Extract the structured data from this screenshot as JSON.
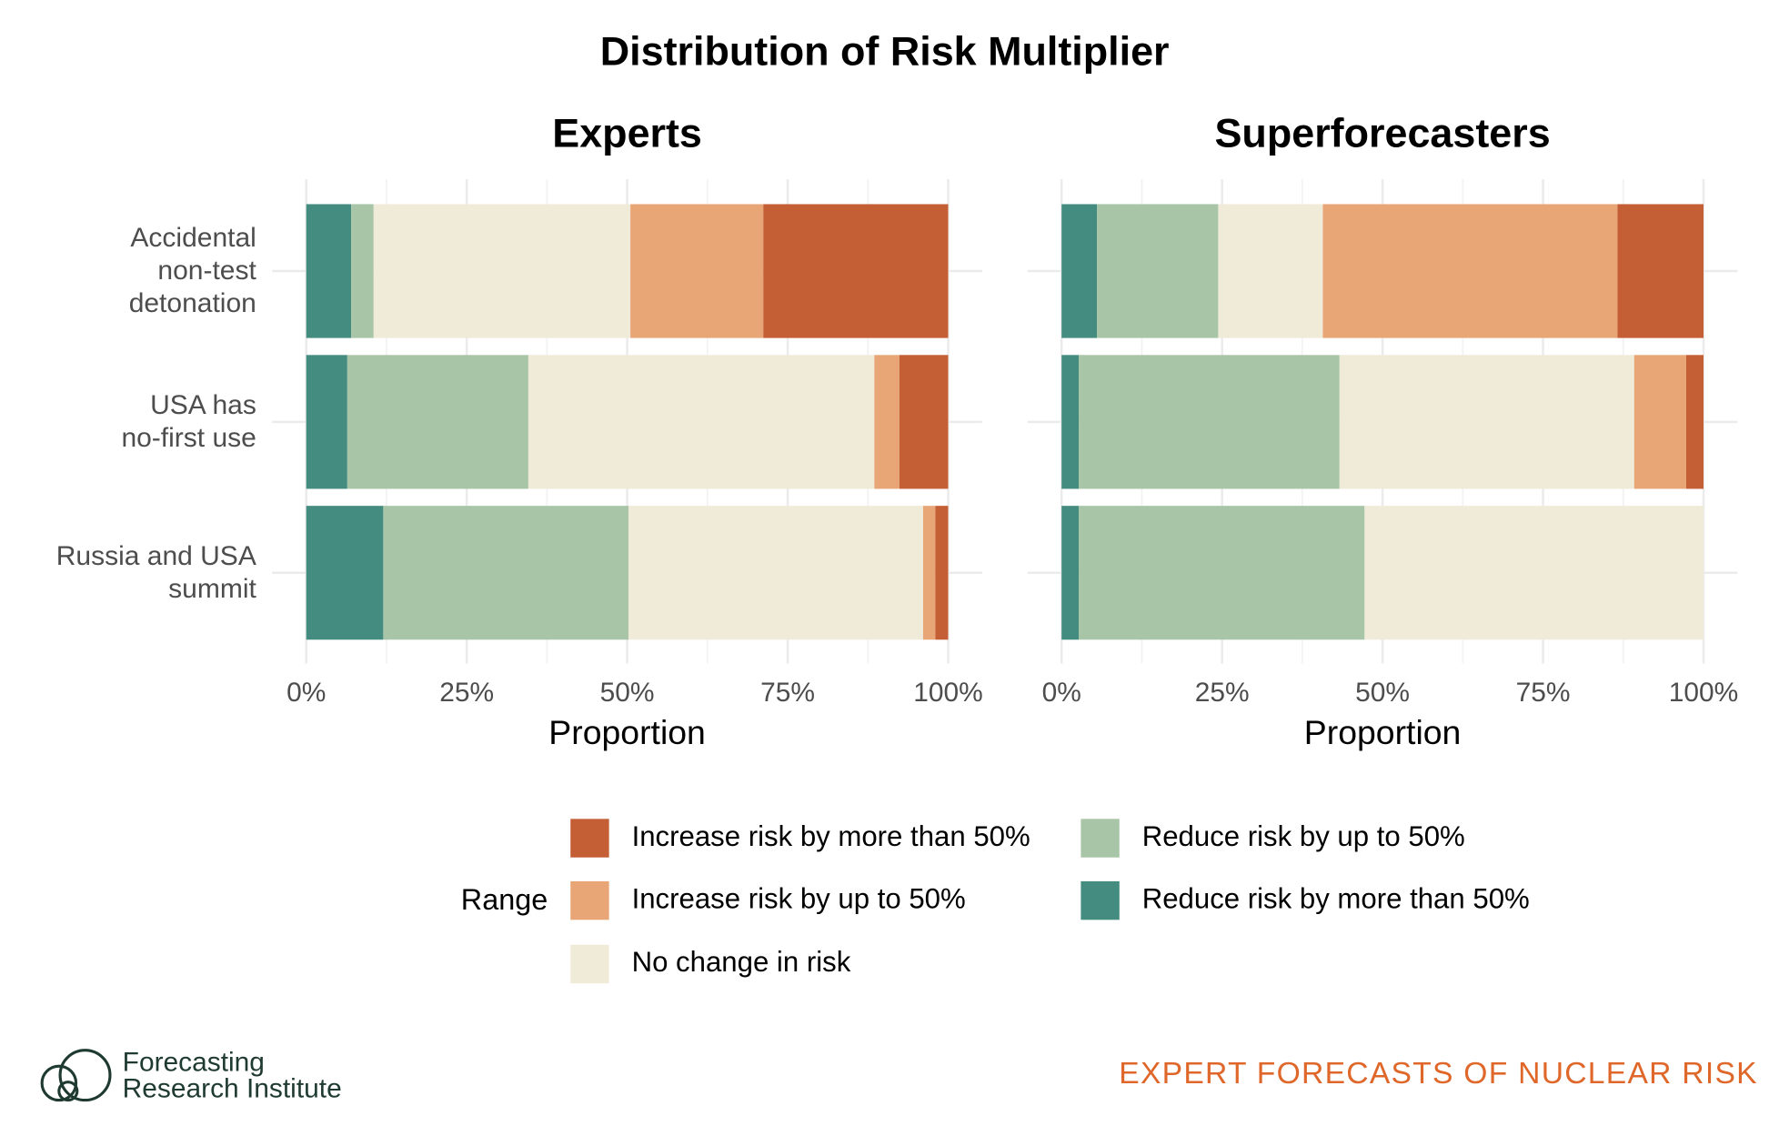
{
  "chart_data": {
    "type": "bar",
    "orientation": "horizontal",
    "stacked": true,
    "title": "Distribution of Risk Multiplier",
    "categories": [
      "Accidental\nnon-test\ndetonation",
      "USA has\nno-first use",
      "Russia and USA\nsummit"
    ],
    "xlabel": "Proportion",
    "xlim": [
      0,
      100
    ],
    "xticks": [
      {
        "value": 0,
        "label": "0%"
      },
      {
        "value": 25,
        "label": "25%"
      },
      {
        "value": 50,
        "label": "50%"
      },
      {
        "value": 75,
        "label": "75%"
      },
      {
        "value": 100,
        "label": "100%"
      }
    ],
    "grid": true,
    "legend_title": "Range",
    "series": [
      {
        "name": "Increase risk by more than 50%",
        "color": "#c45f35"
      },
      {
        "name": "Increase risk by up to 50%",
        "color": "#e8a676"
      },
      {
        "name": "No change in risk",
        "color": "#f0ead8"
      },
      {
        "name": "Reduce risk by up to 50%",
        "color": "#a8c5a7"
      },
      {
        "name": "Reduce risk by more than 50%",
        "color": "#448c80"
      }
    ],
    "panels": [
      {
        "title": "Experts",
        "series_values": [
          [
            28.8,
            7.6,
            2.0
          ],
          [
            20.7,
            3.9,
            1.9
          ],
          [
            40.0,
            53.9,
            45.9
          ],
          [
            3.5,
            28.2,
            38.2
          ],
          [
            7.0,
            6.4,
            12.0
          ]
        ]
      },
      {
        "title": "Superforecasters",
        "series_values": [
          [
            13.4,
            2.7,
            0
          ],
          [
            45.9,
            8.1,
            0
          ],
          [
            16.3,
            45.9,
            52.8
          ],
          [
            18.9,
            40.6,
            44.5
          ],
          [
            5.5,
            2.7,
            2.7
          ]
        ]
      }
    ]
  },
  "footer": {
    "logo_lines": [
      "Forecasting",
      "Research Institute"
    ],
    "tagline": "EXPERT FORECASTS OF NUCLEAR RISK"
  }
}
